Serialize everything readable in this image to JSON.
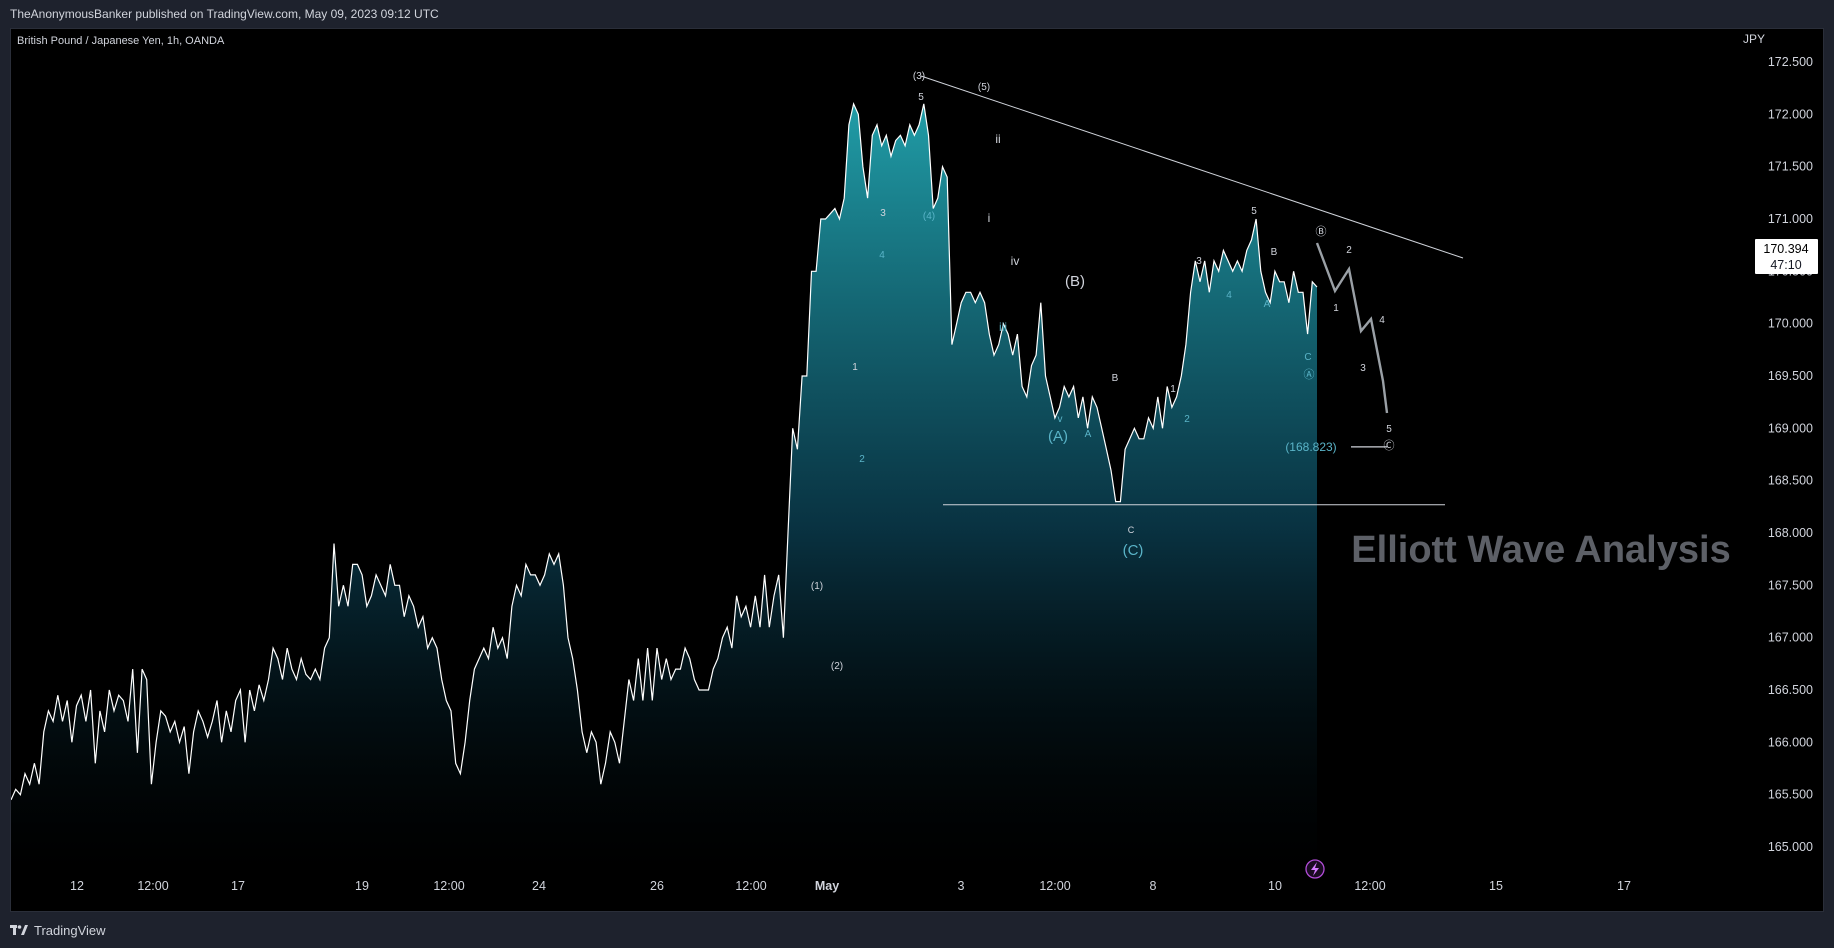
{
  "header": {
    "publisher_line": "TheAnonymousBanker published on TradingView.com, May 09, 2023 09:12 UTC"
  },
  "footer": {
    "brand": "TradingView"
  },
  "chart_data": {
    "type": "area",
    "title": "British Pound / Japanese Yen, 1h, OANDA",
    "currency": "JPY",
    "ylim": [
      164.5,
      172.8
    ],
    "y_ticks": [
      "172.500",
      "172.000",
      "171.500",
      "171.000",
      "170.500",
      "170.000",
      "169.500",
      "169.000",
      "168.500",
      "168.000",
      "167.500",
      "167.000",
      "166.500",
      "166.000",
      "165.500",
      "165.000"
    ],
    "x_ticks": [
      "12",
      "12:00",
      "17",
      "19",
      "12:00",
      "24",
      "26",
      "12:00",
      "May",
      "3",
      "12:00",
      "8",
      "10",
      "12:00",
      "15",
      "17"
    ],
    "last_price": "170.394",
    "countdown": "47:10",
    "watermark": "Elliott Wave Analysis",
    "colors": {
      "line": "#ffffff",
      "area_top": "#22a5b0",
      "area_bottom": "#000000",
      "wave_blue": "#5ab4c8",
      "wave_white": "#d1d4dc"
    },
    "series": [
      {
        "values": [
          165.45,
          165.55,
          165.5,
          165.7,
          165.6,
          165.8,
          165.6,
          166.1,
          166.3,
          166.2,
          166.45,
          166.2,
          166.4,
          166.0,
          166.35,
          166.45,
          166.2,
          166.5,
          165.8,
          166.3,
          166.1,
          166.5,
          166.3,
          166.45,
          166.4,
          166.2,
          166.7,
          165.9,
          166.7,
          166.6,
          165.6,
          166.0,
          166.3,
          166.25,
          166.1,
          166.2,
          166.0,
          166.15,
          165.7,
          166.1,
          166.3,
          166.2,
          166.05,
          166.2,
          166.4,
          166.0,
          166.3,
          166.1,
          166.4,
          166.5,
          166.0,
          166.5,
          166.3,
          166.55,
          166.4,
          166.6,
          166.9,
          166.8,
          166.6,
          166.9,
          166.7,
          166.6,
          166.8,
          166.65,
          166.6,
          166.7,
          166.6,
          166.9,
          167.0,
          167.9,
          167.3,
          167.5,
          167.3,
          167.7,
          167.7,
          167.6,
          167.3,
          167.4,
          167.6,
          167.5,
          167.4,
          167.7,
          167.5,
          167.5,
          167.2,
          167.4,
          167.3,
          167.1,
          167.2,
          166.9,
          167.0,
          166.9,
          166.6,
          166.4,
          166.3,
          165.8,
          165.7,
          166.0,
          166.4,
          166.7,
          166.8,
          166.9,
          166.8,
          167.1,
          166.9,
          167.0,
          166.8,
          167.3,
          167.5,
          167.4,
          167.7,
          167.6,
          167.6,
          167.5,
          167.6,
          167.8,
          167.7,
          167.8,
          167.5,
          167.0,
          166.8,
          166.5,
          166.1,
          165.9,
          166.1,
          166.0,
          165.6,
          165.8,
          166.1,
          166.0,
          165.8,
          166.2,
          166.6,
          166.4,
          166.8,
          166.4,
          166.9,
          166.4,
          166.9,
          166.6,
          166.8,
          166.6,
          166.7,
          166.7,
          166.9,
          166.8,
          166.6,
          166.5,
          166.5,
          166.5,
          166.7,
          166.8,
          167.0,
          167.1,
          166.9,
          167.4,
          167.2,
          167.3,
          167.1,
          167.4,
          167.1,
          167.6,
          167.1,
          167.4,
          167.6,
          167.0,
          168.0,
          169.0,
          168.8,
          169.5,
          169.5,
          170.5,
          170.5,
          171.0,
          171.0,
          171.05,
          171.1,
          171.0,
          171.2,
          171.9,
          172.1,
          172.0,
          171.5,
          171.2,
          171.8,
          171.9,
          171.7,
          171.8,
          171.6,
          171.75,
          171.8,
          171.7,
          171.9,
          171.8,
          171.9,
          172.1,
          171.8,
          171.1,
          171.2,
          171.5,
          171.4,
          169.8,
          170.0,
          170.2,
          170.3,
          170.3,
          170.2,
          170.3,
          170.2,
          169.9,
          169.7,
          169.8,
          170.0,
          169.9,
          169.7,
          169.9,
          169.4,
          169.3,
          169.6,
          169.7,
          170.2,
          169.5,
          169.3,
          169.1,
          169.2,
          169.4,
          169.3,
          169.4,
          169.1,
          169.3,
          169.0,
          169.3,
          169.2,
          169.0,
          168.8,
          168.6,
          168.3,
          168.3,
          168.8,
          168.9,
          169.0,
          168.9,
          168.9,
          169.1,
          169.0,
          169.3,
          169.0,
          169.4,
          169.2,
          169.3,
          169.5,
          169.8,
          170.3,
          170.6,
          170.4,
          170.6,
          170.3,
          170.6,
          170.5,
          170.7,
          170.6,
          170.5,
          170.6,
          170.5,
          170.7,
          170.8,
          171.0,
          170.5,
          170.3,
          170.2,
          170.5,
          170.4,
          170.4,
          170.2,
          170.5,
          170.3,
          170.3,
          169.9,
          170.4,
          170.35
        ]
      }
    ],
    "horizontal_lines": [
      168.27,
      168.823
    ],
    "horizontal_label": "(168.823)",
    "projection_labels": [
      "Ⓑ",
      "2",
      "1",
      "4",
      "3",
      "5",
      "Ⓒ"
    ],
    "wave_labels": [
      "(3)",
      "5",
      "(5)",
      "ii",
      "3",
      "(4)",
      "i",
      "4",
      "iv",
      "(B)",
      "iii",
      "1",
      "v",
      "(A)",
      "A",
      "B",
      "2",
      "(1)",
      "(2)",
      "C",
      "(C)",
      "1",
      "2",
      "3",
      "4",
      "5",
      "B",
      "A",
      "C",
      "Ⓐ"
    ]
  }
}
